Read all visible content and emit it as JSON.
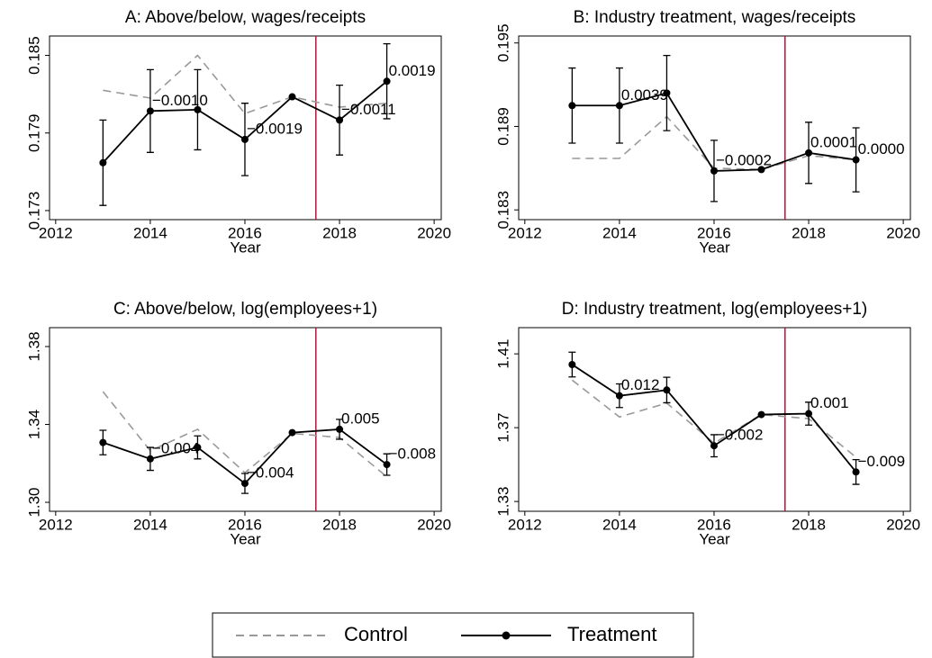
{
  "chart_data": [
    {
      "type": "line",
      "title": "A: Above/below, wages/receipts",
      "x_label": "Year",
      "x": [
        2013,
        2014,
        2015,
        2016,
        2017,
        2018,
        2019
      ],
      "xlim": [
        2011.87,
        2020.15
      ],
      "xticks": [
        2012,
        2014,
        2016,
        2018,
        2020
      ],
      "ylim": [
        0.1723,
        0.1865
      ],
      "yticks": [
        0.173,
        0.179,
        0.185
      ],
      "vline": 2017.5,
      "vline_color": "#c0103a",
      "series": [
        {
          "name": "Control",
          "color": "#999999",
          "dash": true,
          "values": [
            0.1823,
            0.1817,
            0.185,
            0.1805,
            0.1818,
            0.181,
            0.1813
          ]
        },
        {
          "name": "Treatment",
          "color": "#000000",
          "marker": true,
          "values": [
            0.1767,
            0.1807,
            0.1808,
            0.1785,
            0.1818,
            0.18,
            0.183
          ],
          "errors": [
            0.0033,
            0.0032,
            0.0031,
            0.0028,
            null,
            0.0027,
            0.0029
          ],
          "coef_labels": [
            null,
            "−0.0010",
            null,
            "−0.0019",
            null,
            "−0.0011",
            "0.0019"
          ]
        }
      ]
    },
    {
      "type": "line",
      "title": "B: Industry treatment, wages/receipts",
      "x_label": "Year",
      "x": [
        2013,
        2014,
        2015,
        2016,
        2017,
        2018,
        2019
      ],
      "xlim": [
        2011.87,
        2020.15
      ],
      "xticks": [
        2012,
        2014,
        2016,
        2018,
        2020
      ],
      "ylim": [
        0.1823,
        0.1955
      ],
      "yticks": [
        0.183,
        0.189,
        0.195
      ],
      "vline": 2017.5,
      "vline_color": "#c0103a",
      "series": [
        {
          "name": "Control",
          "color": "#999999",
          "dash": true,
          "values": [
            0.1867,
            0.1867,
            0.1897,
            0.186,
            0.1859,
            0.1869,
            0.1866
          ]
        },
        {
          "name": "Treatment",
          "color": "#000000",
          "marker": true,
          "values": [
            0.1905,
            0.1905,
            0.1914,
            0.1858,
            0.1859,
            0.1871,
            0.1866
          ],
          "errors": [
            0.0027,
            0.0027,
            0.0027,
            0.0022,
            null,
            0.0022,
            0.0023
          ],
          "coef_labels": [
            null,
            "0.0039",
            null,
            "−0.0002",
            null,
            "0.0001",
            "0.0000"
          ]
        }
      ]
    },
    {
      "type": "line",
      "title": "C: Above/below, log(employees+1)",
      "x_label": "Year",
      "x": [
        2013,
        2014,
        2015,
        2016,
        2017,
        2018,
        2019
      ],
      "xlim": [
        2011.87,
        2020.15
      ],
      "xticks": [
        2012,
        2014,
        2016,
        2018,
        2020
      ],
      "ylim": [
        1.2954,
        1.3897
      ],
      "yticks": [
        {
          "value": 1.3,
          "label": "1.30"
        },
        {
          "value": 1.34,
          "label": "1.34"
        },
        {
          "value": 1.38,
          "label": "1.38"
        }
      ],
      "vline": 2017.5,
      "vline_color": "#c0103a",
      "series": [
        {
          "name": "Control",
          "color": "#999999",
          "dash": true,
          "values": [
            1.3568,
            1.3265,
            1.3375,
            1.3152,
            1.3354,
            1.3333,
            1.3131
          ]
        },
        {
          "name": "Treatment",
          "color": "#000000",
          "marker": true,
          "values": [
            1.3307,
            1.3223,
            1.3282,
            1.3097,
            1.3358,
            1.3375,
            1.3194
          ],
          "errors": [
            0.0063,
            0.0059,
            0.0059,
            0.0051,
            null,
            0.0051,
            0.0055
          ],
          "coef_labels": [
            null,
            "−0.004",
            null,
            "−0.004",
            null,
            "0.005",
            "−0.008"
          ]
        }
      ]
    },
    {
      "type": "line",
      "title": "D: Industry treatment, log(employees+1)",
      "x_label": "Year",
      "x": [
        2013,
        2014,
        2015,
        2016,
        2017,
        2018,
        2019
      ],
      "xlim": [
        2011.87,
        2020.15
      ],
      "xticks": [
        2012,
        2014,
        2016,
        2018,
        2020
      ],
      "ylim": [
        1.3247,
        1.4242
      ],
      "yticks": [
        1.33,
        1.37,
        1.41
      ],
      "vline": 2017.5,
      "vline_color": "#c0103a",
      "series": [
        {
          "name": "Control",
          "color": "#999999",
          "dash": true,
          "values": [
            1.3958,
            1.3758,
            1.3833,
            1.3616,
            1.3771,
            1.3749,
            1.354
          ]
        },
        {
          "name": "Treatment",
          "color": "#000000",
          "marker": true,
          "values": [
            1.4042,
            1.3873,
            1.3904,
            1.3602,
            1.3771,
            1.3776,
            1.346
          ],
          "errors": [
            0.0067,
            0.0064,
            0.0069,
            0.006,
            null,
            0.0062,
            0.0067
          ],
          "coef_labels": [
            null,
            "0.012",
            null,
            "−0.002",
            null,
            "0.001",
            "−0.009"
          ]
        }
      ]
    }
  ]
}
